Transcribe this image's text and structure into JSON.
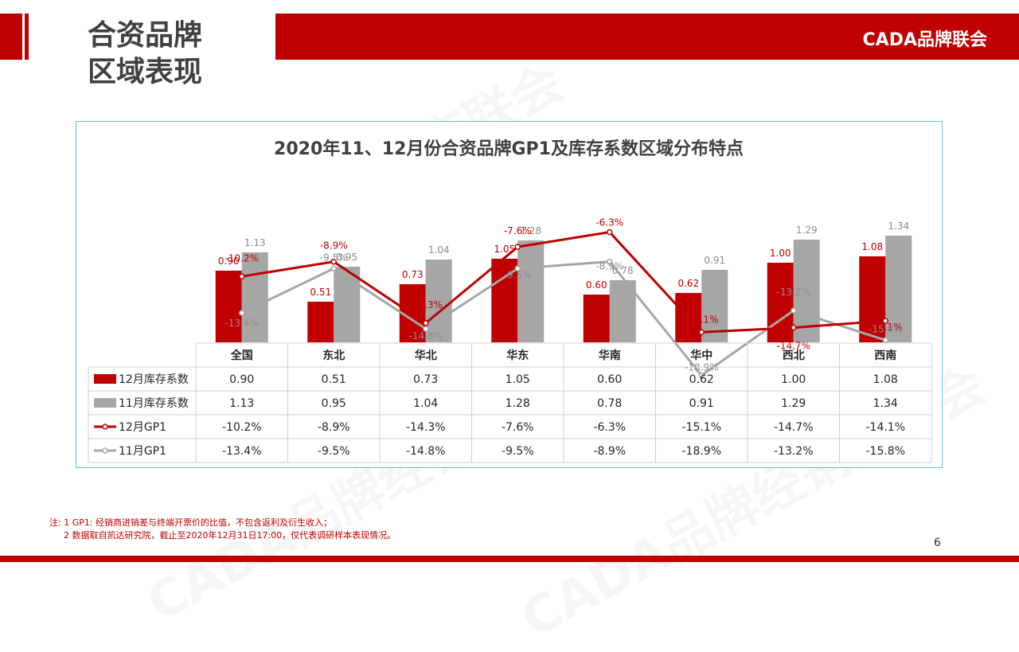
{
  "header": {
    "title_line1": "合资品牌",
    "title_line2": "区域表现",
    "brand": "CADA品牌联会"
  },
  "watermark_text": "CADA品牌经销商联会",
  "colors": {
    "accent": "#c00000",
    "grey": "#a6a6a6",
    "border": "#5fc3d6"
  },
  "chart_data": {
    "type": "bar",
    "title": "2020年11、12月份合资品牌GP1及库存系数区域分布特点",
    "categories": [
      "全国",
      "东北",
      "华北",
      "华东",
      "华南",
      "华中",
      "西北",
      "西南"
    ],
    "series": [
      {
        "name": "12月库存系数",
        "kind": "bar",
        "color": "#c00000",
        "values": [
          0.9,
          0.51,
          0.73,
          1.05,
          0.6,
          0.62,
          1.0,
          1.08
        ],
        "labels": [
          "0.90",
          "0.51",
          "0.73",
          "1.05",
          "0.60",
          "0.62",
          "1.00",
          "1.08"
        ]
      },
      {
        "name": "11月库存系数",
        "kind": "bar",
        "color": "#a6a6a6",
        "values": [
          1.13,
          0.95,
          1.04,
          1.28,
          0.78,
          0.91,
          1.29,
          1.34
        ],
        "labels": [
          "1.13",
          "0.95",
          "1.04",
          "1.28",
          "0.78",
          "0.91",
          "1.29",
          "1.34"
        ]
      },
      {
        "name": "12月GP1",
        "kind": "line",
        "color": "#c00000",
        "values": [
          -10.2,
          -8.9,
          -14.3,
          -7.6,
          -6.3,
          -15.1,
          -14.7,
          -14.1
        ],
        "labels": [
          "-10.2%",
          "-8.9%",
          "-14.3%",
          "-7.6%",
          "-6.3%",
          "-15.1%",
          "-14.7%",
          "-14.1%"
        ]
      },
      {
        "name": "11月GP1",
        "kind": "line",
        "color": "#a6a6a6",
        "values": [
          -13.4,
          -9.5,
          -14.8,
          -9.5,
          -8.9,
          -18.9,
          -13.2,
          -15.8
        ],
        "labels": [
          "-13.4%",
          "-9.5%",
          "-14.8%",
          "-9.5%",
          "-8.9%",
          "-18.9%",
          "-13.2%",
          "-15.8%"
        ]
      }
    ],
    "bar_axis_range": [
      0,
      2.6
    ],
    "line_axis_range": [
      -40,
      -5
    ],
    "legend": "data-table"
  },
  "footnote": {
    "line1": "注: 1  GP1: 经销商进销差与终端开票价的比值，不包含返利及衍生收入；",
    "line2": "2 数据取自凯达研究院，截止至2020年12月31日17:00，仅代表调研样本表现情况。"
  },
  "page_number": "6"
}
